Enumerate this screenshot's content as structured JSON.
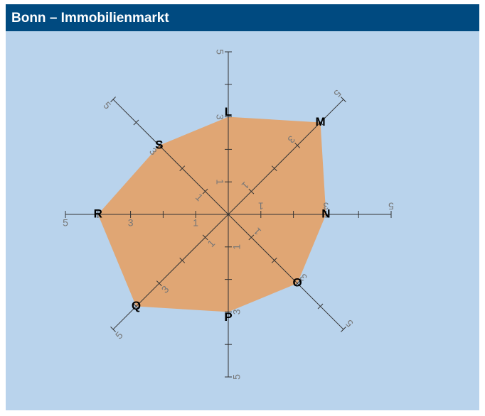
{
  "chart_data": {
    "type": "radar",
    "title": "Bonn – Immobilienmarkt",
    "categories": [
      "L",
      "M",
      "N",
      "O",
      "P",
      "Q",
      "R",
      "S"
    ],
    "values": [
      3,
      4,
      3,
      3,
      3,
      4,
      4,
      3
    ],
    "color": "#e0a674",
    "rlim": [
      0,
      5
    ],
    "rticks": [
      1,
      3,
      5
    ],
    "minor_rticks": [
      2,
      4
    ]
  }
}
